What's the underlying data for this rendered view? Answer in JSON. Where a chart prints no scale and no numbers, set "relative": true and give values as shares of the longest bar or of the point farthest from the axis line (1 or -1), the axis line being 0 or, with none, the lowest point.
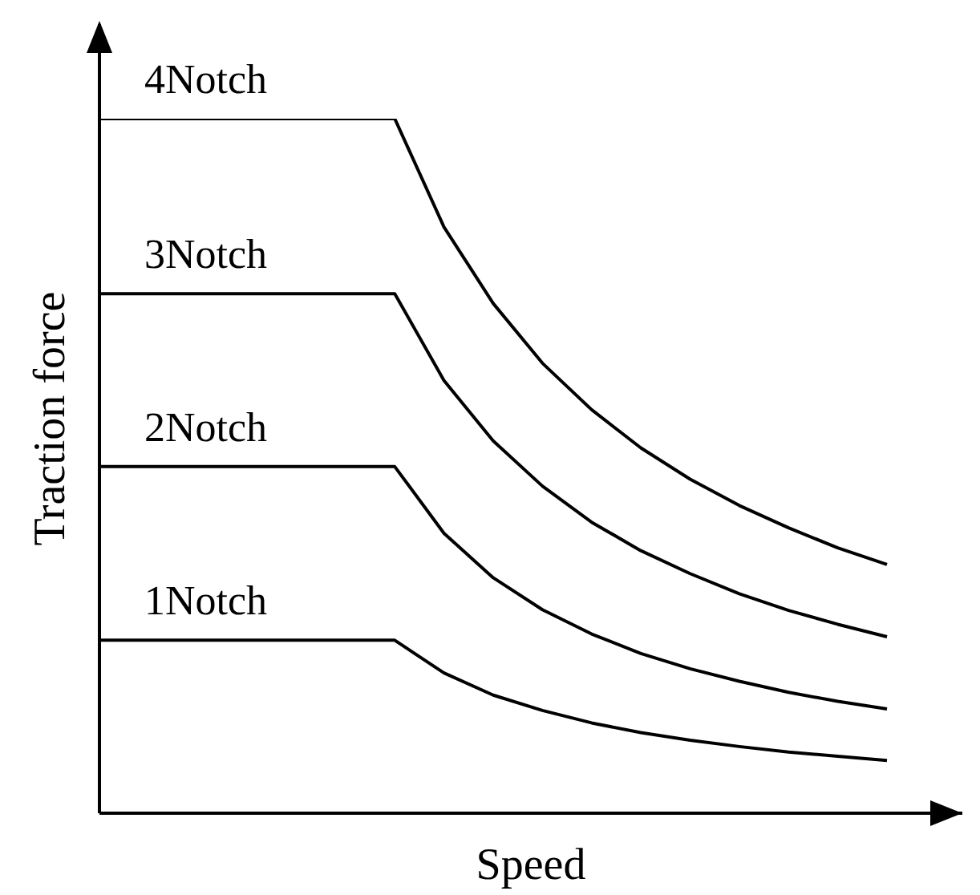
{
  "chart_data": {
    "type": "line",
    "relative": true,
    "xlabel": "Speed",
    "ylabel": "Traction force",
    "grid": false,
    "legend": false,
    "marker": "none",
    "line_style": "solid",
    "categories": [
      null,
      null,
      null,
      null,
      null,
      null,
      null,
      null,
      null,
      null,
      null,
      null,
      null,
      null,
      null,
      null,
      null
    ],
    "series": [
      {
        "name": "4Notch",
        "color": "#000000",
        "values": [
          1,
          1,
          1,
          1,
          1,
          1,
          1,
          0.844,
          0.734,
          0.648,
          0.581,
          0.526,
          0.481,
          0.443,
          0.411,
          0.382,
          0.358
        ]
      },
      {
        "name": "3Notch",
        "color": "#000000",
        "values": [
          0.748,
          0.748,
          0.748,
          0.748,
          0.748,
          0.748,
          0.748,
          0.623,
          0.536,
          0.471,
          0.419,
          0.378,
          0.345,
          0.316,
          0.292,
          0.272,
          0.254
        ]
      },
      {
        "name": "2Notch",
        "color": "#000000",
        "values": [
          0.499,
          0.499,
          0.499,
          0.499,
          0.499,
          0.499,
          0.499,
          0.403,
          0.339,
          0.293,
          0.258,
          0.23,
          0.208,
          0.19,
          0.174,
          0.161,
          0.15
        ]
      },
      {
        "name": "1Notch",
        "color": "#000000",
        "values": [
          0.249,
          0.249,
          0.249,
          0.249,
          0.249,
          0.249,
          0.249,
          0.202,
          0.17,
          0.148,
          0.13,
          0.116,
          0.105,
          0.096,
          0.088,
          0.082,
          0.076
        ]
      }
    ]
  }
}
